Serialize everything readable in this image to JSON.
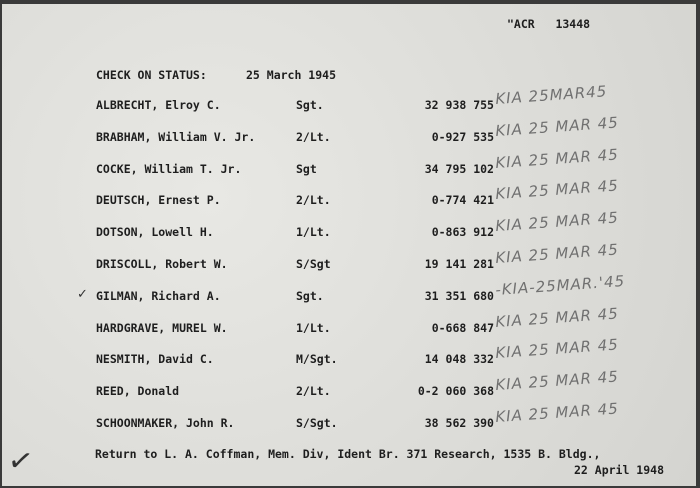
{
  "header": {
    "file_ref": "\"ACR   13448",
    "title": "CHECK ON STATUS:",
    "date": "25 March 1945"
  },
  "rows": [
    {
      "name": "ALBRECHT, Elroy C.",
      "rank": "Sgt.",
      "serial": "32 938 755",
      "note": "KIA 25MAR45",
      "checked": false
    },
    {
      "name": "BRABHAM, William V. Jr.",
      "rank": "2/Lt.",
      "serial": "0-927 535",
      "note": "KIA 25 MAR 45",
      "checked": false
    },
    {
      "name": "COCKE, William T. Jr.",
      "rank": "Sgt",
      "serial": "34 795 102",
      "note": "KIA 25 MAR 45",
      "checked": false
    },
    {
      "name": "DEUTSCH, Ernest P.",
      "rank": "2/Lt.",
      "serial": "0-774 421",
      "note": "KIA 25 MAR 45",
      "checked": false
    },
    {
      "name": "DOTSON, Lowell H.",
      "rank": "1/Lt.",
      "serial": "0-863 912",
      "note": "KIA 25 MAR 45",
      "checked": false
    },
    {
      "name": "DRISCOLL, Robert W.",
      "rank": "S/Sgt",
      "serial": "19 141 281",
      "note": "KIA 25 MAR 45",
      "checked": false
    },
    {
      "name": "GILMAN, Richard A.",
      "rank": "Sgt.",
      "serial": "31 351 680",
      "note": "-KIA-25MAR.'45",
      "checked": true
    },
    {
      "name": "HARDGRAVE, MUREL W.",
      "rank": "1/Lt.",
      "serial": "0-668 847",
      "note": "KIA 25 MAR 45",
      "checked": false
    },
    {
      "name": "NESMITH, David C.",
      "rank": "M/Sgt.",
      "serial": "14 048 332",
      "note": "KIA 25 MAR 45",
      "checked": false
    },
    {
      "name": "REED, Donald",
      "rank": "2/Lt.",
      "serial": "0-2 060 368",
      "note": "KIA 25 MAR 45",
      "checked": false
    },
    {
      "name": "SCHOONMAKER, John R.",
      "rank": "S/Sgt.",
      "serial": "38 562 390",
      "note": "KIA 25 MAR 45",
      "checked": false
    }
  ],
  "footer": {
    "return_line": "Return to L. A. Coffman, Mem. Div, Ident Br. 371 Research, 1535 B. Bldg.,",
    "date": "22 April 1948"
  },
  "marks": {
    "check_icon": "checkmark"
  }
}
